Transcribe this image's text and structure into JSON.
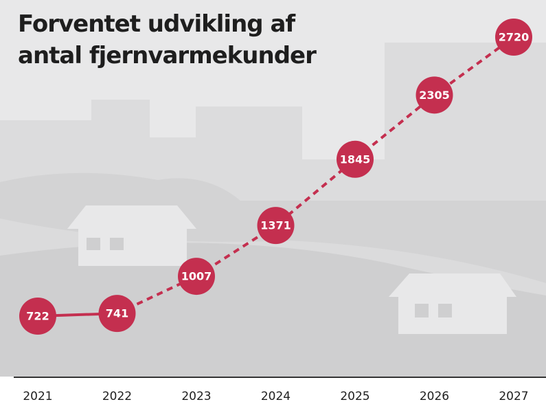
{
  "chart_data": {
    "type": "line",
    "title_lines": [
      "Forventet udvikling af",
      "antal fjernvarmekunder"
    ],
    "categories": [
      "2021",
      "2022",
      "2023",
      "2024",
      "2025",
      "2026",
      "2027"
    ],
    "values": [
      722,
      741,
      1007,
      1371,
      1845,
      2305,
      2720
    ],
    "color": "#c42f4f",
    "dashed_from_index": 1
  }
}
